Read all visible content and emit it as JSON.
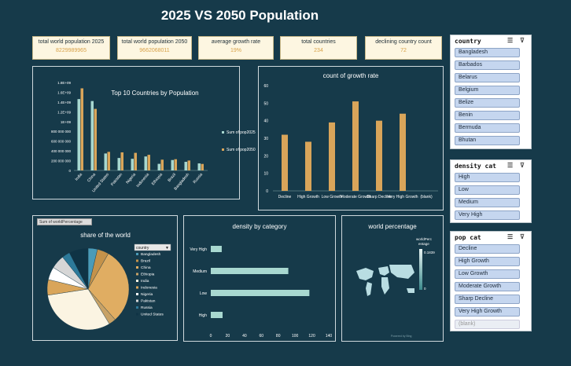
{
  "title": "2025 VS 2050 Population",
  "kpis": [
    {
      "label": "total world population 2025",
      "value": "8229989965"
    },
    {
      "label": "total world population 2050",
      "value": "9662068011"
    },
    {
      "label": "average growth rate",
      "value": "19%"
    },
    {
      "label": "total countries",
      "value": "234"
    },
    {
      "label": "declining country count",
      "value": "72"
    }
  ],
  "slicers": {
    "country": {
      "title": "country",
      "items": [
        "Bangladesh",
        "Barbados",
        "Belarus",
        "Belgium",
        "Belize",
        "Benin",
        "Bermuda",
        "Bhutan"
      ]
    },
    "density": {
      "title": "density cat",
      "items": [
        "High",
        "Low",
        "Medium",
        "Very High"
      ]
    },
    "pop": {
      "title": "pop cat",
      "items": [
        "Decline",
        "High Growth",
        "Low Growth",
        "Moderate Growth",
        "Sharp Decline",
        "Very High Growth",
        "(blank)"
      ]
    }
  },
  "pie_legend": {
    "button": "Sum of worldPercentage",
    "filter": "country"
  },
  "map": {
    "legend_title_1": "worldPerc",
    "legend_title_2": "entage",
    "max_label": "0.1839",
    "min_label": "0",
    "credit": "Powered by Bing"
  },
  "colors": {
    "bar_2025": "#a8d8d0",
    "bar_2050": "#d9a55a",
    "growth_bar": "#d9a55a",
    "density_bar": "#a8d8d0"
  },
  "chart_data": [
    {
      "type": "bar",
      "title": "Top 10 Countries by Population",
      "categories": [
        "India",
        "China",
        "United States",
        "Pakistan",
        "Nigeria",
        "Indonesia",
        "Ethiopia",
        "Brazil",
        "Bangladesh",
        "Russia"
      ],
      "series": [
        {
          "name": "Sum of pop2025",
          "values": [
            1460000000,
            1420000000,
            347000000,
            255000000,
            238000000,
            286000000,
            135000000,
            213000000,
            176000000,
            144000000
          ]
        },
        {
          "name": "Sum of pop2050",
          "values": [
            1680000000,
            1260000000,
            380000000,
            370000000,
            360000000,
            320000000,
            220000000,
            230000000,
            203000000,
            133000000
          ]
        }
      ],
      "yticks": [
        "0",
        "200 000 000",
        "400 000 000",
        "600 000 000",
        "800 000 000",
        "1E+09",
        "1.2E+09",
        "1.4E+09",
        "1.6E+09",
        "1.8E+09"
      ],
      "ylim": [
        0,
        1800000000
      ],
      "legend": "right"
    },
    {
      "type": "bar",
      "title": "count of growth rate",
      "categories": [
        "Decline",
        "High Growth",
        "Low Growth",
        "Moderate Growth",
        "Sharp Decline",
        "Very High Growth",
        "(blank)"
      ],
      "values": [
        32,
        28,
        39,
        51,
        40,
        44,
        0
      ],
      "yticks": [
        0,
        10,
        20,
        30,
        40,
        50,
        60
      ],
      "ylim": [
        0,
        60
      ]
    },
    {
      "type": "pie",
      "title": "share of the world",
      "categories": [
        "Bangladesh",
        "Brazil",
        "China",
        "Ethiopia",
        "India",
        "Indonesia",
        "Nigeria",
        "Pakistan",
        "Russia",
        "United States"
      ],
      "values": [
        2.1,
        2.6,
        17.2,
        1.6,
        17.8,
        3.5,
        2.9,
        3.1,
        1.8,
        4.3
      ],
      "colors": [
        "#4a9bb8",
        "#c4924a",
        "#e0ad62",
        "#c8a266",
        "#fbf4e2",
        "#d9a55a",
        "#ffffff",
        "#d6d6d6",
        "#2d7a9a",
        "#0f3345"
      ]
    },
    {
      "type": "bar",
      "orientation": "horizontal",
      "title": "density by category",
      "categories": [
        "Very High",
        "Medium",
        "Low",
        "High"
      ],
      "values": [
        13,
        92,
        117,
        14
      ],
      "xticks": [
        0,
        20,
        40,
        60,
        80,
        100,
        120,
        140
      ],
      "xlim": [
        0,
        140
      ]
    },
    {
      "type": "map",
      "title": "world percentage"
    }
  ]
}
